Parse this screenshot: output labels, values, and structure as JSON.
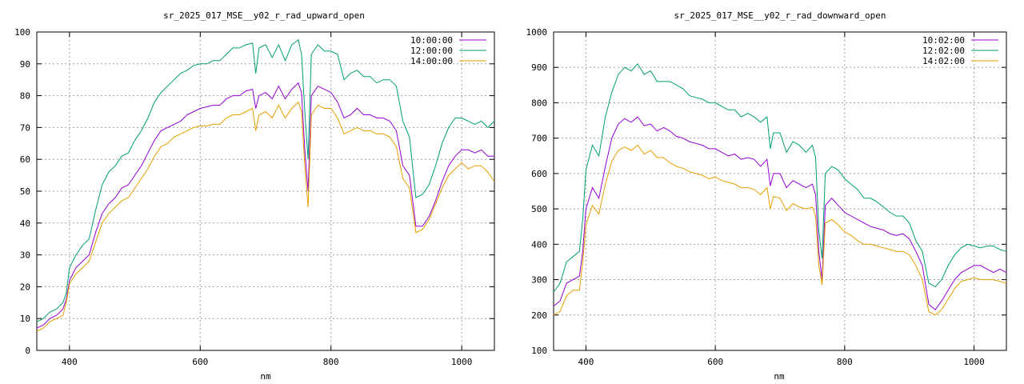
{
  "chart_data": [
    {
      "type": "line",
      "title": "sr_2025_017_MSE__y02_r_rad_upward_open",
      "xlabel": "nm",
      "ylabel": "",
      "xlim": [
        350,
        1050
      ],
      "ylim": [
        0,
        100
      ],
      "xticks": [
        400,
        600,
        800,
        1000
      ],
      "yticks": [
        0,
        10,
        20,
        30,
        40,
        50,
        60,
        70,
        80,
        90,
        100
      ],
      "grid": true,
      "legend_position": "top-right",
      "x": [
        350,
        360,
        370,
        380,
        390,
        395,
        400,
        410,
        420,
        430,
        440,
        450,
        460,
        470,
        480,
        490,
        500,
        510,
        520,
        530,
        540,
        550,
        560,
        570,
        580,
        590,
        600,
        610,
        620,
        630,
        640,
        650,
        660,
        670,
        680,
        685,
        690,
        700,
        710,
        720,
        730,
        740,
        750,
        755,
        760,
        765,
        770,
        780,
        790,
        800,
        810,
        820,
        830,
        840,
        850,
        860,
        870,
        880,
        890,
        900,
        910,
        920,
        930,
        940,
        950,
        960,
        970,
        980,
        990,
        1000,
        1010,
        1020,
        1030,
        1040,
        1050
      ],
      "series": [
        {
          "name": "10:00:00",
          "color": "#9400d3",
          "values": [
            7,
            8,
            10,
            11,
            13,
            16,
            22,
            26,
            28,
            30,
            37,
            43,
            46,
            48,
            51,
            52,
            55,
            58,
            62,
            66,
            69,
            70,
            71,
            72,
            74,
            75,
            76,
            76.5,
            77,
            77,
            79,
            80,
            80,
            81.5,
            82,
            76,
            80,
            81,
            79,
            83,
            79,
            82,
            84,
            81,
            63,
            50,
            80,
            83,
            82,
            81,
            78,
            73,
            74,
            76,
            74,
            74,
            73,
            73,
            72,
            69,
            58,
            55,
            39,
            39,
            42,
            47,
            53,
            58,
            61,
            63,
            63,
            62,
            63,
            61,
            61
          ]
        },
        {
          "name": "12:00:00",
          "color": "#009e73",
          "values": [
            9,
            10,
            12,
            13,
            15,
            18,
            26,
            30,
            33,
            35,
            44,
            52,
            56,
            58,
            61,
            62,
            66,
            69,
            73,
            78,
            81,
            83,
            85,
            87,
            88,
            89.5,
            90,
            90,
            91,
            91,
            93,
            95,
            95,
            96,
            96.5,
            87,
            95,
            96,
            92,
            96,
            91,
            96,
            97.5,
            93,
            75,
            60,
            93,
            96,
            94,
            94,
            93,
            85,
            87,
            88,
            86,
            86,
            84,
            85,
            85,
            83,
            72,
            67,
            48,
            49,
            52,
            58,
            65,
            70,
            73,
            73,
            72,
            71,
            72,
            70,
            72
          ]
        },
        {
          "name": "14:00:00",
          "color": "#e69f00",
          "values": [
            6,
            7,
            9,
            10,
            11,
            15,
            21,
            24,
            26,
            28,
            34,
            40,
            43,
            45,
            47,
            48,
            51,
            54,
            57,
            61,
            64,
            65,
            67,
            68,
            69,
            70,
            70.5,
            70.5,
            71,
            71,
            73,
            74,
            74,
            75,
            76,
            69,
            74,
            75,
            73,
            77,
            73,
            76,
            78,
            75,
            58,
            45,
            74,
            77,
            76,
            76,
            73,
            68,
            69,
            70,
            69,
            69,
            68,
            68,
            67,
            64,
            54,
            51,
            37,
            38,
            41,
            46,
            51,
            55,
            57,
            59,
            57,
            58,
            58,
            56,
            53
          ]
        }
      ]
    },
    {
      "type": "line",
      "title": "sr_2025_017_MSE__y02_r_rad_downward_open",
      "xlabel": "nm",
      "ylabel": "",
      "xlim": [
        350,
        1050
      ],
      "ylim": [
        100,
        1000
      ],
      "xticks": [
        400,
        600,
        800,
        1000
      ],
      "yticks": [
        100,
        200,
        300,
        400,
        500,
        600,
        700,
        800,
        900,
        1000
      ],
      "grid": true,
      "legend_position": "top-right",
      "x": [
        350,
        360,
        370,
        380,
        390,
        395,
        400,
        410,
        420,
        430,
        440,
        450,
        460,
        470,
        480,
        490,
        500,
        510,
        520,
        530,
        540,
        550,
        560,
        570,
        580,
        590,
        600,
        610,
        620,
        630,
        640,
        650,
        660,
        670,
        680,
        685,
        690,
        700,
        710,
        720,
        730,
        740,
        750,
        755,
        760,
        765,
        770,
        780,
        790,
        800,
        810,
        820,
        830,
        840,
        850,
        860,
        870,
        880,
        890,
        900,
        910,
        920,
        930,
        940,
        950,
        960,
        970,
        980,
        990,
        1000,
        1010,
        1020,
        1030,
        1040,
        1050
      ],
      "series": [
        {
          "name": "10:02:00",
          "color": "#9400d3",
          "values": [
            225,
            240,
            290,
            300,
            310,
            380,
            500,
            560,
            530,
            620,
            700,
            740,
            755,
            745,
            760,
            735,
            740,
            720,
            730,
            720,
            705,
            700,
            690,
            685,
            680,
            670,
            670,
            660,
            650,
            655,
            640,
            645,
            640,
            620,
            640,
            565,
            600,
            600,
            560,
            580,
            570,
            560,
            570,
            540,
            380,
            300,
            510,
            530,
            510,
            490,
            480,
            470,
            460,
            450,
            445,
            440,
            430,
            425,
            430,
            415,
            380,
            340,
            230,
            215,
            240,
            270,
            300,
            320,
            330,
            340,
            340,
            330,
            320,
            330,
            320
          ]
        },
        {
          "name": "12:02:00",
          "color": "#009e73",
          "values": [
            265,
            290,
            350,
            365,
            380,
            470,
            610,
            680,
            650,
            760,
            830,
            880,
            900,
            890,
            910,
            880,
            890,
            860,
            860,
            860,
            850,
            840,
            820,
            815,
            810,
            800,
            800,
            790,
            780,
            780,
            760,
            770,
            760,
            745,
            760,
            670,
            715,
            715,
            660,
            690,
            680,
            660,
            680,
            645,
            440,
            360,
            600,
            620,
            610,
            585,
            570,
            555,
            530,
            530,
            520,
            505,
            490,
            480,
            480,
            460,
            410,
            380,
            290,
            280,
            300,
            340,
            370,
            390,
            400,
            395,
            390,
            395,
            395,
            385,
            380
          ]
        },
        {
          "name": "14:02:00",
          "color": "#e69f00",
          "values": [
            200,
            210,
            255,
            270,
            270,
            350,
            455,
            510,
            485,
            570,
            635,
            665,
            675,
            665,
            680,
            655,
            665,
            645,
            645,
            630,
            620,
            615,
            605,
            600,
            595,
            585,
            590,
            580,
            575,
            570,
            560,
            560,
            555,
            540,
            560,
            500,
            535,
            530,
            495,
            515,
            505,
            500,
            505,
            480,
            340,
            285,
            460,
            470,
            455,
            435,
            425,
            410,
            400,
            400,
            395,
            390,
            385,
            380,
            380,
            370,
            340,
            300,
            210,
            200,
            215,
            245,
            275,
            295,
            300,
            305,
            300,
            300,
            300,
            295,
            290
          ]
        }
      ]
    }
  ]
}
